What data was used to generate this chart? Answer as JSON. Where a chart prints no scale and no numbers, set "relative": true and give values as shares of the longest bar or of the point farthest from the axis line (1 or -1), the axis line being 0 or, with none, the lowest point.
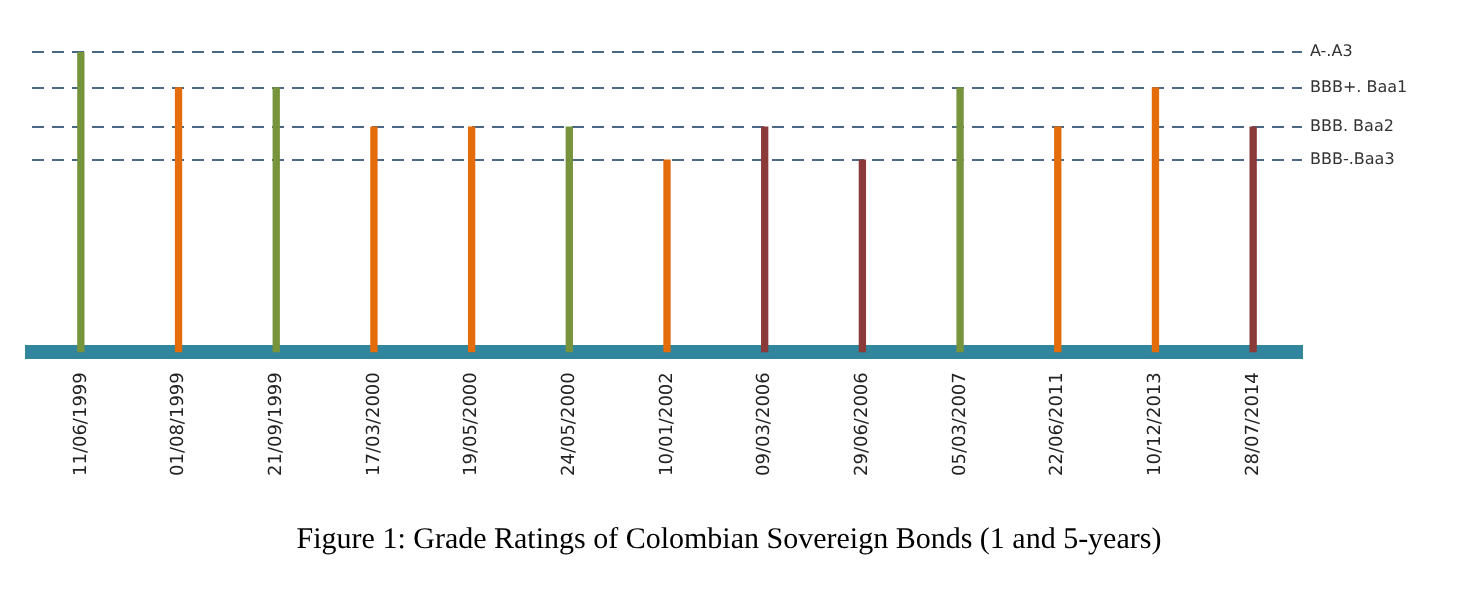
{
  "chart_data": {
    "type": "bar",
    "title": "Figure 1: Grade Ratings of Colombian Sovereign Bonds (1 and 5-years)",
    "categories": [
      "11/06/1999",
      "01/08/1999",
      "21/09/1999",
      "17/03/2000",
      "19/05/2000",
      "24/05/2000",
      "10/01/2002",
      "09/03/2006",
      "29/06/2006",
      "05/03/2007",
      "22/06/2011",
      "10/12/2013",
      "28/07/2014"
    ],
    "series": [
      {
        "color": "#8b3a3a",
        "values": [
          null,
          null,
          null,
          null,
          null,
          null,
          null,
          0.75,
          0.64,
          null,
          null,
          null,
          0.75
        ]
      },
      {
        "color": "#77933c",
        "values": [
          1,
          null,
          0.88,
          null,
          null,
          0.75,
          null,
          null,
          null,
          0.88,
          null,
          null,
          null
        ]
      },
      {
        "color": "#e46c0a",
        "values": [
          null,
          0.88,
          null,
          0.75,
          0.75,
          null,
          0.64,
          null,
          null,
          null,
          0.75,
          0.88,
          null
        ]
      }
    ],
    "relative": true,
    "ref_lines": [
      {
        "axis": "y",
        "value": 1,
        "label": "A-.A3",
        "color": "#4a6785",
        "line_style": "dashed"
      },
      {
        "axis": "y",
        "value": 0.88,
        "label": "BBB+. Baa1",
        "color": "#4a6785",
        "line_style": "dashed"
      },
      {
        "axis": "y",
        "value": 0.75,
        "label": "BBB. Baa2",
        "color": "#4a6785",
        "line_style": "dashed"
      },
      {
        "axis": "y",
        "value": 0.64,
        "label": "BBB-.Baa3",
        "color": "#4a6785",
        "line_style": "dashed"
      }
    ],
    "legend": false
  }
}
